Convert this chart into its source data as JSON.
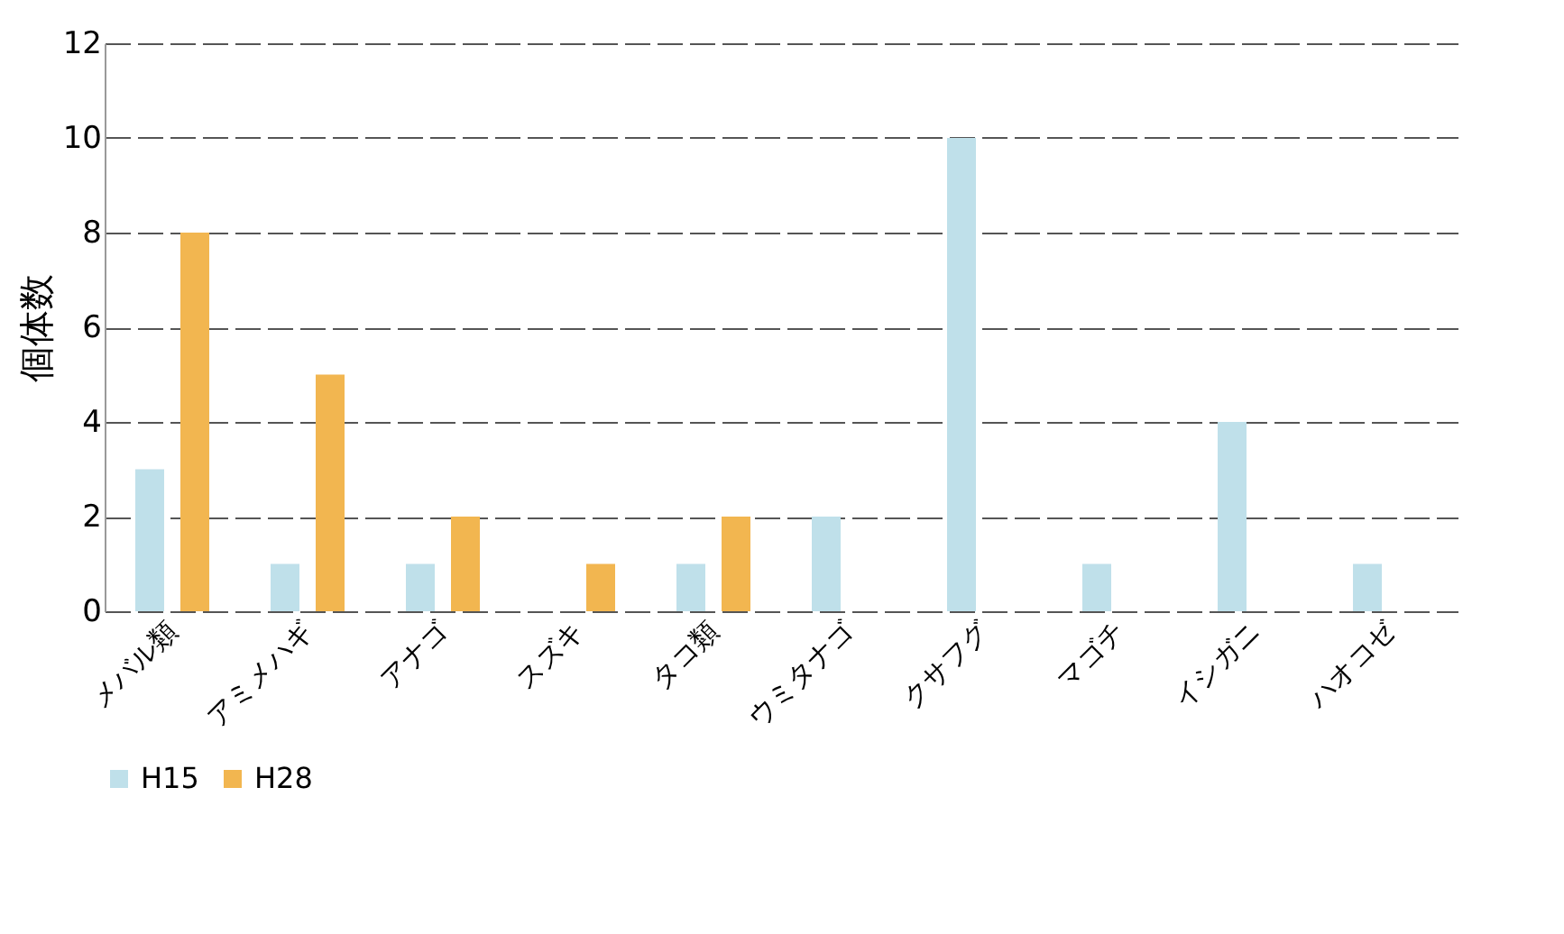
{
  "chart_data": {
    "type": "bar",
    "ylabel": "個体数",
    "categories": [
      "メバル類",
      "アミメハギ",
      "アナゴ",
      "スズキ",
      "タコ類",
      "ウミタナゴ",
      "クサフグ",
      "マゴチ",
      "イシガニ",
      "ハオコゼ"
    ],
    "series": [
      {
        "name": "H15",
        "color": "#bfe0ea",
        "values": [
          3,
          1,
          1,
          null,
          1,
          2,
          10,
          1,
          4,
          1
        ]
      },
      {
        "name": "H28",
        "color": "#f2b650",
        "values": [
          8,
          5,
          2,
          1,
          2,
          null,
          null,
          null,
          null,
          null
        ]
      }
    ],
    "ylim": [
      0,
      12
    ],
    "yticks": [
      0,
      2,
      4,
      6,
      8,
      10,
      12
    ],
    "grid": "y",
    "legend": "bottom"
  }
}
